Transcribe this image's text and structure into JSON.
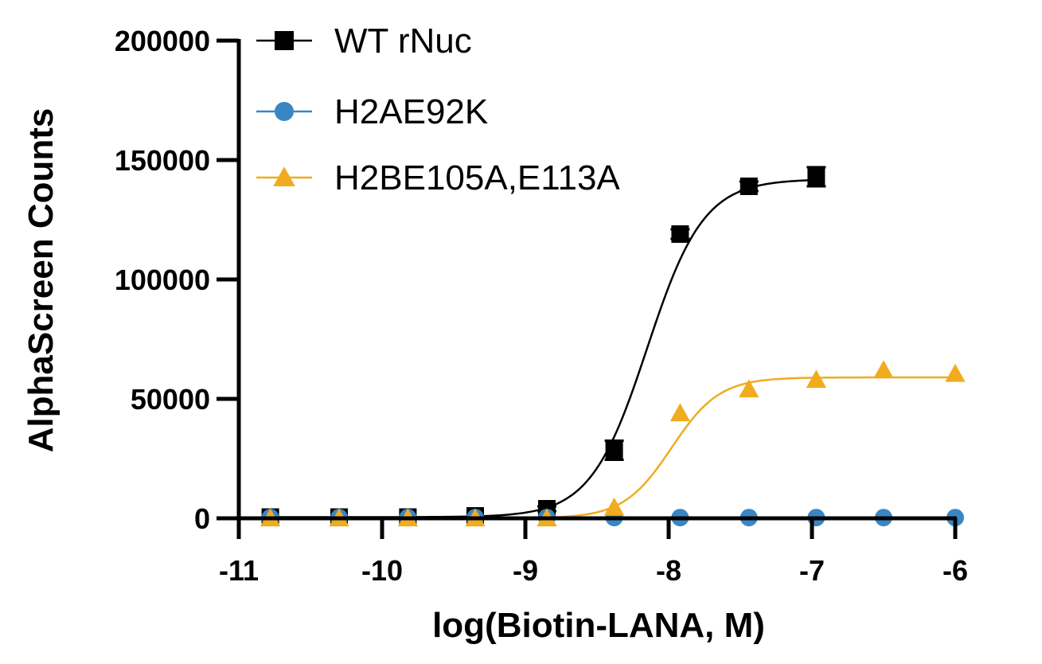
{
  "chart_data": {
    "type": "scatter",
    "title": "",
    "xlabel": "log(Biotin-LANA, M)",
    "ylabel": "AlphaScreen  Counts",
    "xlim": [
      -11,
      -6
    ],
    "ylim": [
      0,
      200000
    ],
    "x_ticks": [
      "-11",
      "-10",
      "-9",
      "-8",
      "-7",
      "-6"
    ],
    "y_ticks": [
      "0",
      "50000",
      "100000",
      "150000",
      "200000"
    ],
    "legend_position": "top-left",
    "series": [
      {
        "name": "WT rNuc",
        "color": "#000000",
        "marker": "square",
        "x": [
          -10.78,
          -10.3,
          -9.82,
          -9.35,
          -8.85,
          -8.38,
          -7.92,
          -7.44,
          -6.97
        ],
        "y": [
          500,
          500,
          500,
          1000,
          4000,
          28500,
          119000,
          139000,
          143000
        ],
        "error": [
          0,
          0,
          0,
          0,
          1000,
          4000,
          2000,
          2000,
          4000
        ],
        "fit": {
          "bottom": 500,
          "top": 142000,
          "logEC50": -8.15,
          "hill": 2.2
        }
      },
      {
        "name": "H2AE92K",
        "color": "#3a86c4",
        "marker": "circle",
        "x": [
          -10.78,
          -10.3,
          -9.82,
          -9.35,
          -8.85,
          -8.38,
          -7.92,
          -7.44,
          -6.97,
          -6.5,
          -6.0
        ],
        "y": [
          300,
          300,
          300,
          300,
          300,
          300,
          300,
          300,
          300,
          300,
          300
        ],
        "error": [],
        "fit": {
          "bottom": 300,
          "top": 300,
          "logEC50": -8,
          "hill": 1
        }
      },
      {
        "name": "H2BE105A,E113A",
        "color": "#f0ac1e",
        "marker": "triangle",
        "x": [
          -10.78,
          -10.3,
          -9.82,
          -9.35,
          -8.85,
          -8.38,
          -7.92,
          -7.44,
          -6.97,
          -6.5,
          -6.0
        ],
        "y": [
          0,
          0,
          0,
          0,
          0,
          4500,
          44000,
          54000,
          58000,
          62000,
          60500
        ],
        "error": [],
        "fit": {
          "bottom": 0,
          "top": 59000,
          "logEC50": -7.98,
          "hill": 2.6
        }
      }
    ]
  }
}
